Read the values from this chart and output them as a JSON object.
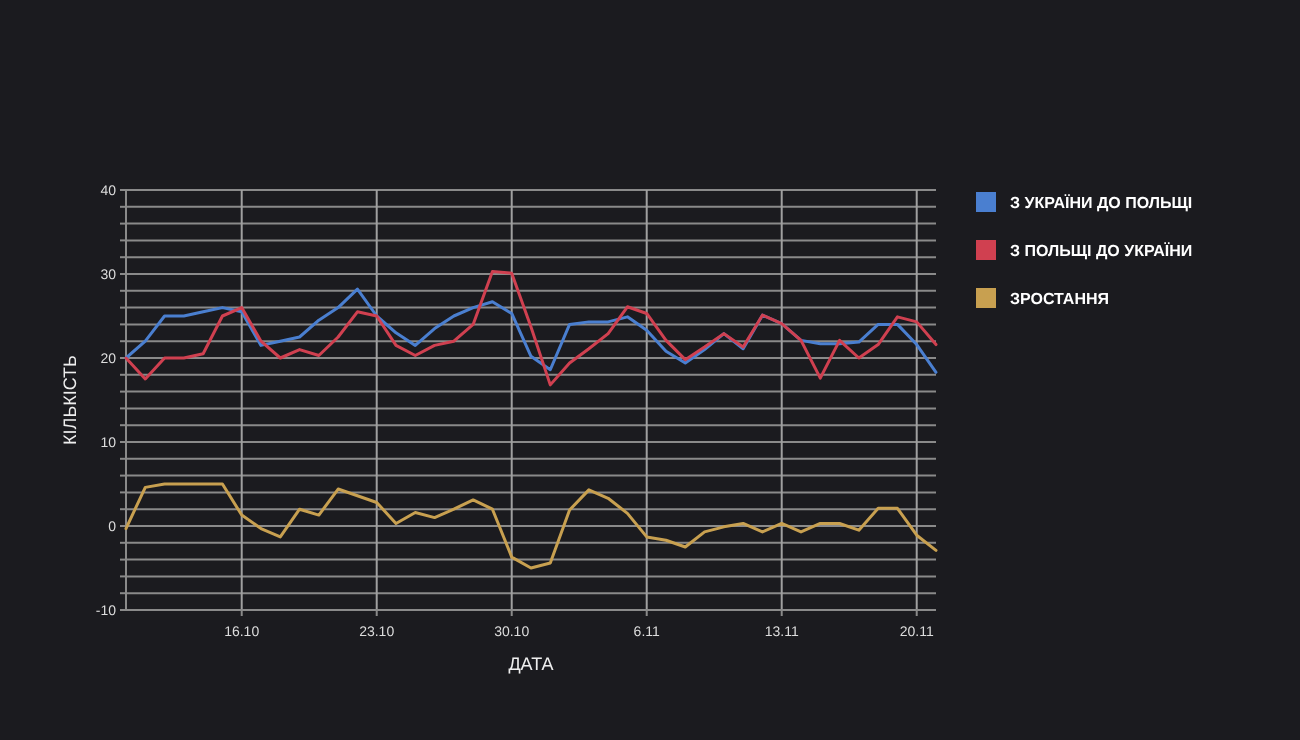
{
  "chart_data": {
    "type": "line",
    "xlabel": "ДАТА",
    "ylabel": "КІЛЬКІСТЬ",
    "legend": "right",
    "grid": true,
    "marker": "none",
    "line_style": "solid",
    "x": [
      "--10-10",
      "--10-11",
      "--10-12",
      "--10-13",
      "--10-14",
      "--10-15",
      "--10-16",
      "--10-17",
      "--10-18",
      "--10-19",
      "--10-20",
      "--10-21",
      "--10-22",
      "--10-23",
      "--10-24",
      "--10-25",
      "--10-26",
      "--10-27",
      "--10-28",
      "--10-29",
      "--10-30",
      "--10-31",
      "--11-01",
      "--11-02",
      "--11-03",
      "--11-04",
      "--11-05",
      "--11-06",
      "--11-07",
      "--11-08",
      "--11-09",
      "--11-10",
      "--11-11",
      "--11-12",
      "--11-13",
      "--11-14",
      "--11-15",
      "--11-16",
      "--11-17",
      "--11-18",
      "--11-19",
      "--11-20",
      "--11-21"
    ],
    "xlim": [
      "--10-10",
      "--11-21"
    ],
    "xticks": [
      {
        "value": "--10-16",
        "label": "16.10"
      },
      {
        "value": "--10-23",
        "label": "23.10"
      },
      {
        "value": "--10-30",
        "label": "30.10"
      },
      {
        "value": "--11-06",
        "label": "6.11"
      },
      {
        "value": "--11-13",
        "label": "13.11"
      },
      {
        "value": "--11-20",
        "label": "20.11"
      }
    ],
    "ylim": [
      -10,
      40
    ],
    "yticks": [
      -10,
      {
        "value": -8,
        "label": null
      },
      {
        "value": -6,
        "label": null
      },
      {
        "value": -4,
        "label": null
      },
      {
        "value": -2,
        "label": null
      },
      0,
      {
        "value": 2,
        "label": null
      },
      {
        "value": 4,
        "label": null
      },
      {
        "value": 6,
        "label": null
      },
      {
        "value": 8,
        "label": null
      },
      10,
      {
        "value": 12,
        "label": null
      },
      {
        "value": 14,
        "label": null
      },
      {
        "value": 16,
        "label": null
      },
      {
        "value": 18,
        "label": null
      },
      20,
      {
        "value": 22,
        "label": null
      },
      {
        "value": 24,
        "label": null
      },
      {
        "value": 26,
        "label": null
      },
      {
        "value": 28,
        "label": null
      },
      30,
      {
        "value": 32,
        "label": null
      },
      {
        "value": 34,
        "label": null
      },
      {
        "value": 36,
        "label": null
      },
      {
        "value": 38,
        "label": null
      },
      40
    ],
    "series": [
      {
        "name": "З УКРАЇНИ ДО ПОЛЬЩІ",
        "color": "#4a7fd0",
        "values": [
          20,
          22,
          25,
          25,
          25.5,
          26,
          25.5,
          21.5,
          22,
          22.5,
          24.5,
          26,
          28.2,
          25,
          23,
          21.5,
          23.5,
          25,
          26,
          26.7,
          25.3,
          20.2,
          18.6,
          24,
          24.3,
          24.3,
          24.9,
          23.3,
          20.8,
          19.4,
          21,
          22.9,
          21.1,
          25.1,
          24.1,
          22.1,
          21.7,
          21.7,
          21.9,
          24,
          24,
          21.6,
          18.3
        ]
      },
      {
        "name": "З ПОЛЬЩІ ДО УКРАЇНИ",
        "color": "#d04050",
        "values": [
          20,
          17.5,
          20,
          20,
          20.5,
          25,
          26,
          22,
          20,
          21,
          20.3,
          22.5,
          25.5,
          25,
          21.5,
          20.3,
          21.5,
          22,
          24,
          30.3,
          30.1,
          23.7,
          16.8,
          19.4,
          21.1,
          22.9,
          26.1,
          25.3,
          22.1,
          19.8,
          21.3,
          22.9,
          21.3,
          25.1,
          24.1,
          22.1,
          17.6,
          22.1,
          20,
          21.6,
          24.9,
          24.3,
          21.6
        ]
      },
      {
        "name": "ЗРОСТАННЯ",
        "color": "#c8a050",
        "values": [
          -0.3,
          4.6,
          5,
          5,
          5,
          5,
          1.3,
          -0.3,
          -1.3,
          2,
          1.3,
          4.4,
          3.6,
          2.8,
          0.3,
          1.6,
          1,
          2,
          3.1,
          2,
          -3.7,
          -5,
          -4.4,
          1.9,
          4.3,
          3.3,
          1.5,
          -1.3,
          -1.7,
          -2.5,
          -0.7,
          -0.1,
          0.3,
          -0.7,
          0.3,
          -0.7,
          0.3,
          0.3,
          -0.5,
          2.1,
          2.1,
          -1.1,
          -2.9
        ]
      }
    ]
  }
}
